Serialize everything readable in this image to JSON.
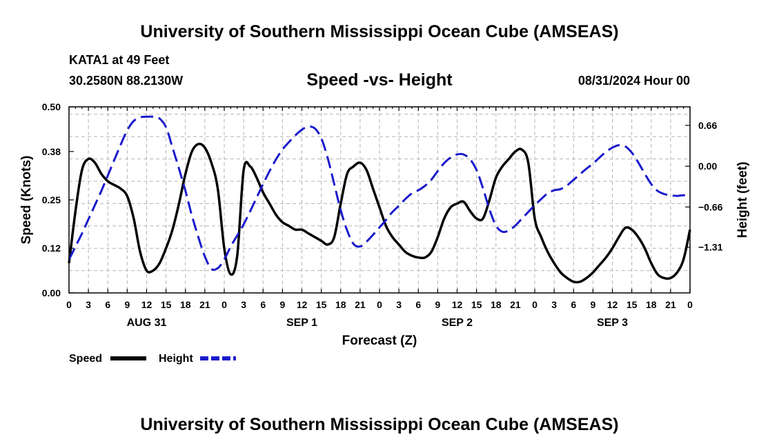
{
  "header": {
    "title_top": "University of Southern Mississippi Ocean Cube (AMSEAS)",
    "station": "KATA1 at 49 Feet",
    "coords": "30.2580N  88.2130W",
    "subtitle": "Speed -vs- Height",
    "datetime": "08/31/2024 Hour 00",
    "title_bottom": "University of Southern Mississippi Ocean Cube (AMSEAS)"
  },
  "legend": {
    "speed_label": "Speed",
    "height_label": "Height"
  },
  "colors": {
    "speed": "#000000",
    "height": "#1a1acc"
  },
  "chart_data": {
    "type": "line",
    "title": "Speed -vs- Height",
    "xlabel": "Forecast (Z)",
    "ylabel_left": "Speed (Knots)",
    "ylabel_right": "Height (feet)",
    "x_range_hours": [
      0,
      96
    ],
    "x_tick_step_hours": 3,
    "x_tick_labels": [
      "0",
      "3",
      "6",
      "9",
      "12",
      "15",
      "18",
      "21",
      "0",
      "3",
      "6",
      "9",
      "12",
      "15",
      "18",
      "21",
      "0",
      "3",
      "6",
      "9",
      "12",
      "15",
      "18",
      "21",
      "0",
      "3",
      "6",
      "9",
      "12",
      "15",
      "18",
      "21",
      "0"
    ],
    "day_labels": [
      {
        "label": "AUG 31",
        "hour": 12
      },
      {
        "label": "SEP 1",
        "hour": 36
      },
      {
        "label": "SEP 2",
        "hour": 60
      },
      {
        "label": "SEP 3",
        "hour": 84
      }
    ],
    "ylim_left": [
      0,
      0.5
    ],
    "yticks_left": [
      0.0,
      0.12,
      0.25,
      0.38,
      0.5
    ],
    "ytick_labels_left": [
      "0.00",
      "0.12",
      "0.25",
      "0.38",
      "0.50"
    ],
    "ylim_right": [
      -2.05,
      0.96
    ],
    "yticks_right": [
      -1.31,
      -0.66,
      0.0,
      0.66
    ],
    "ytick_labels_right": [
      "−1.31",
      "−0.66",
      "0.00",
      "0.66"
    ],
    "grid": true,
    "series": [
      {
        "name": "Speed",
        "axis": "left",
        "style": "solid",
        "x": [
          0,
          1,
          2,
          3,
          4,
          5,
          6,
          7,
          8,
          9,
          10,
          11,
          12,
          13,
          14,
          15,
          16,
          17,
          18,
          19,
          20,
          21,
          22,
          23,
          24,
          25,
          26,
          27,
          28,
          29,
          30,
          31,
          32,
          33,
          34,
          35,
          36,
          37,
          38,
          39,
          40,
          41,
          42,
          43,
          44,
          45,
          46,
          47,
          48,
          49,
          50,
          51,
          52,
          53,
          54,
          55,
          56,
          57,
          58,
          59,
          60,
          61,
          62,
          63,
          64,
          65,
          66,
          67,
          68,
          69,
          70,
          71,
          72,
          73,
          74,
          75,
          76,
          77,
          78,
          79,
          80,
          81,
          82,
          83,
          84,
          85,
          86,
          87,
          88,
          89,
          90,
          91,
          92,
          93,
          94,
          95,
          96
        ],
        "values": [
          0.08,
          0.22,
          0.33,
          0.36,
          0.35,
          0.32,
          0.3,
          0.29,
          0.28,
          0.26,
          0.2,
          0.11,
          0.06,
          0.06,
          0.08,
          0.12,
          0.17,
          0.24,
          0.32,
          0.38,
          0.4,
          0.39,
          0.35,
          0.28,
          0.12,
          0.05,
          0.1,
          0.33,
          0.34,
          0.31,
          0.27,
          0.24,
          0.21,
          0.19,
          0.18,
          0.17,
          0.17,
          0.16,
          0.15,
          0.14,
          0.13,
          0.15,
          0.24,
          0.32,
          0.34,
          0.35,
          0.33,
          0.28,
          0.23,
          0.18,
          0.15,
          0.13,
          0.11,
          0.1,
          0.095,
          0.095,
          0.11,
          0.15,
          0.2,
          0.23,
          0.24,
          0.245,
          0.22,
          0.2,
          0.2,
          0.25,
          0.31,
          0.34,
          0.36,
          0.38,
          0.385,
          0.35,
          0.2,
          0.15,
          0.11,
          0.08,
          0.055,
          0.04,
          0.03,
          0.03,
          0.04,
          0.055,
          0.075,
          0.095,
          0.12,
          0.15,
          0.175,
          0.17,
          0.15,
          0.12,
          0.08,
          0.05,
          0.04,
          0.04,
          0.055,
          0.09,
          0.17
        ]
      },
      {
        "name": "Height",
        "axis": "right",
        "style": "dashed",
        "x": [
          0,
          1,
          2,
          3,
          4,
          5,
          6,
          7,
          8,
          9,
          10,
          11,
          12,
          13,
          14,
          15,
          16,
          17,
          18,
          19,
          20,
          21,
          22,
          23,
          24,
          25,
          26,
          27,
          28,
          29,
          30,
          31,
          32,
          33,
          34,
          35,
          36,
          37,
          38,
          39,
          40,
          41,
          42,
          43,
          44,
          45,
          46,
          47,
          48,
          49,
          50,
          51,
          52,
          53,
          54,
          55,
          56,
          57,
          58,
          59,
          60,
          61,
          62,
          63,
          64,
          65,
          66,
          67,
          68,
          69,
          70,
          71,
          72,
          73,
          74,
          75,
          76,
          77,
          78,
          79,
          80,
          81,
          82,
          83,
          84,
          85,
          86,
          87,
          88,
          89,
          90,
          91,
          92,
          93,
          94,
          95,
          96
        ],
        "values": [
          -1.51,
          -1.3,
          -1.09,
          -0.86,
          -0.63,
          -0.4,
          -0.15,
          0.1,
          0.35,
          0.58,
          0.73,
          0.79,
          0.8,
          0.8,
          0.77,
          0.63,
          0.3,
          -0.04,
          -0.4,
          -0.8,
          -1.15,
          -1.46,
          -1.66,
          -1.65,
          -1.51,
          -1.3,
          -1.12,
          -0.94,
          -0.73,
          -0.51,
          -0.29,
          -0.08,
          0.11,
          0.27,
          0.39,
          0.5,
          0.59,
          0.64,
          0.61,
          0.45,
          0.13,
          -0.29,
          -0.71,
          -1.04,
          -1.26,
          -1.3,
          -1.22,
          -1.11,
          -0.99,
          -0.87,
          -0.74,
          -0.64,
          -0.53,
          -0.44,
          -0.39,
          -0.32,
          -0.22,
          -0.08,
          0.05,
          0.14,
          0.19,
          0.19,
          0.11,
          -0.06,
          -0.36,
          -0.7,
          -0.96,
          -1.06,
          -1.04,
          -0.96,
          -0.85,
          -0.74,
          -0.63,
          -0.53,
          -0.44,
          -0.39,
          -0.37,
          -0.31,
          -0.22,
          -0.13,
          -0.04,
          0.04,
          0.14,
          0.23,
          0.3,
          0.34,
          0.32,
          0.22,
          0.06,
          -0.12,
          -0.29,
          -0.4,
          -0.45,
          -0.47,
          -0.48,
          -0.47,
          -0.48
        ]
      }
    ]
  }
}
